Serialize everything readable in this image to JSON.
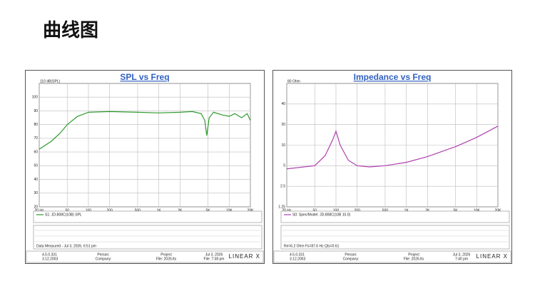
{
  "header": {
    "title": "曲线图"
  },
  "chart_data": [
    {
      "type": "line",
      "title": "SPL vs Freq",
      "xscale": "log",
      "yscale": "linear",
      "grid": true,
      "x": [
        20,
        30,
        40,
        50,
        70,
        100,
        200,
        500,
        1000,
        2000,
        3000,
        4000,
        4500,
        4800,
        5200,
        6000,
        8000,
        10000,
        12000,
        15000,
        18000,
        20000
      ],
      "series": [
        {
          "name": "S1: JD-808C(10B) SPL",
          "color": "#2e9b2e",
          "values": [
            62,
            68,
            74,
            80,
            86,
            89,
            89.5,
            89,
            88.5,
            89,
            89.5,
            88,
            83,
            72,
            85,
            89,
            87,
            86,
            88,
            85,
            88,
            83
          ]
        }
      ],
      "xlim": [
        20,
        20000
      ],
      "xticks": [
        {
          "value": 20,
          "label": "20 Hz"
        },
        50,
        100,
        200,
        500,
        {
          "value": 1000,
          "label": "1K"
        },
        {
          "value": 2000,
          "label": "2K"
        },
        {
          "value": 5000,
          "label": "5K"
        },
        {
          "value": 10000,
          "label": "10K"
        },
        {
          "value": 20000,
          "label": "20K"
        }
      ],
      "ylim": [
        20,
        110
      ],
      "yticks": [
        20,
        30,
        40,
        50,
        60,
        70,
        80,
        90,
        100,
        {
          "value": 110,
          "label": "110 dB(SPL)"
        }
      ],
      "footer": {
        "version": "4.5.0.331",
        "build": "3.12.2003",
        "person": "Person:",
        "company": "Company:",
        "project": "Project",
        "file": "File: 2026.lts",
        "date": "Jul 3, 2026",
        "time": "File: 7:38 pm",
        "brand": "LINEAR X",
        "note": "Data Measured - Jul 3, 2026, 6:51 pm"
      }
    },
    {
      "type": "line",
      "title": "Impedance vs Freq",
      "xscale": "log",
      "yscale": "log",
      "grid": true,
      "x": [
        20,
        50,
        70,
        90,
        100,
        115,
        150,
        200,
        300,
        500,
        1000,
        2000,
        5000,
        10000,
        20000
      ],
      "series": [
        {
          "name": "S0: Spec/Model: JD-808C(10B 10.0)",
          "color": "#b040b0",
          "values": [
            4.5,
            5,
            7,
            12,
            16,
            10,
            6,
            5,
            4.8,
            5,
            5.6,
            6.8,
            9.5,
            13,
            19
          ]
        }
      ],
      "xlim": [
        20,
        20000
      ],
      "xticks": [
        {
          "value": 20,
          "label": "20 Hz"
        },
        50,
        100,
        200,
        500,
        {
          "value": 1000,
          "label": "1K"
        },
        {
          "value": 2000,
          "label": "2K"
        },
        {
          "value": 5000,
          "label": "5K"
        },
        {
          "value": 10000,
          "label": "10K"
        },
        {
          "value": 20000,
          "label": "20K"
        }
      ],
      "ylim": [
        1.25,
        80
      ],
      "yticks": [
        1.25,
        2.5,
        5,
        10,
        20,
        40,
        {
          "value": 80,
          "label": "80 Ohm"
        }
      ],
      "footer": {
        "version": "4.5.0.331",
        "build": "3.12.2003",
        "person": "Person:",
        "company": "Company:",
        "project": "Project",
        "file": "File: 2026.lts",
        "date": "Jul 3, 2026",
        "time": "7:40 pm",
        "brand": "LINEAR X",
        "note": "Re=6.2 Ohm  Fs=87.6 Hz  Qts=0.61"
      }
    }
  ]
}
